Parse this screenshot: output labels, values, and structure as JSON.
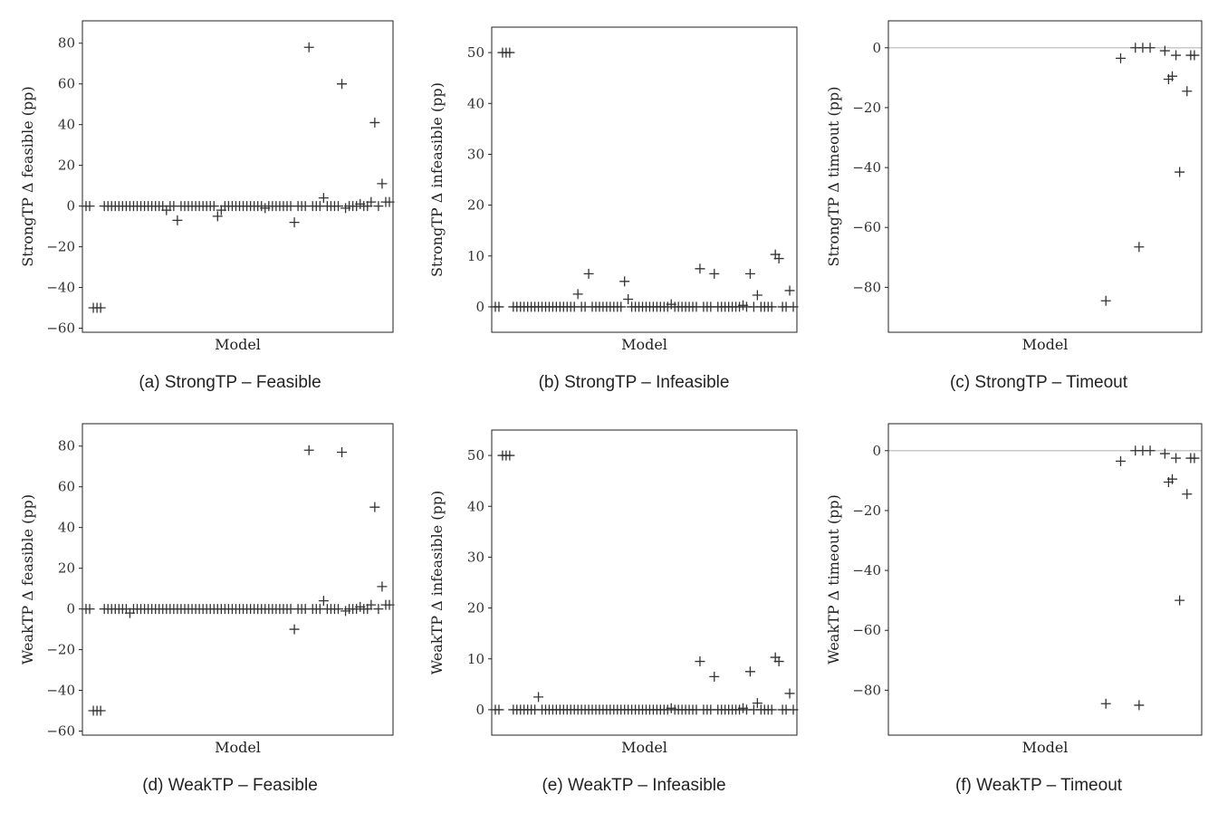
{
  "figure": {
    "panels": [
      {
        "caption": "(a) StrongTP – Feasible"
      },
      {
        "caption": "(b) StrongTP – Infeasible"
      },
      {
        "caption": "(c) StrongTP – Timeout"
      },
      {
        "caption": "(d) WeakTP – Feasible"
      },
      {
        "caption": "(e) WeakTP – Infeasible"
      },
      {
        "caption": "(f) WeakTP – Timeout"
      }
    ]
  },
  "chart_data": [
    {
      "type": "scatter",
      "title": "",
      "xlabel": "Model",
      "ylabel": "StrongTP Δ feasible (pp)",
      "ylim": [
        -62,
        91
      ],
      "yticks": [
        -60,
        -40,
        -20,
        0,
        20,
        40,
        60,
        80
      ],
      "zero_line": false,
      "series": [
        {
          "values": [
            0,
            0,
            -50,
            -50,
            -50,
            0,
            0,
            0,
            0,
            0,
            0,
            0,
            0,
            0,
            0,
            0,
            0,
            0,
            0,
            0,
            0,
            0,
            -2,
            0,
            0,
            -7,
            0,
            0,
            0,
            0,
            0,
            0,
            0,
            0,
            0,
            0,
            -5,
            -2,
            0,
            0,
            0,
            0,
            0,
            0,
            0,
            0,
            0,
            0,
            0,
            -1,
            0,
            0,
            0,
            0,
            0,
            0,
            0,
            -8,
            0,
            0,
            0,
            78,
            0,
            0,
            0,
            4,
            0,
            0,
            0,
            0,
            60,
            -1,
            0,
            0,
            0,
            1,
            0,
            0,
            2,
            41,
            0,
            11,
            2,
            2
          ]
        }
      ]
    },
    {
      "type": "scatter",
      "title": "",
      "xlabel": "Model",
      "ylabel": "StrongTP Δ infeasible (pp)",
      "ylim": [
        -5,
        55
      ],
      "yticks": [
        0,
        10,
        20,
        30,
        40,
        50
      ],
      "zero_line": false,
      "series": [
        {
          "values": [
            0,
            0,
            50,
            50,
            50,
            0,
            0,
            0,
            0,
            0,
            0,
            0,
            0,
            0,
            0,
            0,
            0,
            0,
            0,
            0,
            0,
            0,
            0,
            2.5,
            0,
            0,
            6.5,
            0,
            0,
            0,
            0,
            0,
            0,
            0,
            0,
            0,
            5,
            1.5,
            0,
            0,
            0,
            0,
            0,
            0,
            0,
            0,
            0,
            0,
            0,
            0.5,
            0,
            0,
            0,
            0,
            0,
            0,
            0,
            7.5,
            0,
            0,
            0,
            6.5,
            0,
            0,
            0,
            0,
            0,
            0,
            0,
            0.3,
            0,
            6.5,
            0,
            2.3,
            0,
            0,
            0,
            0,
            10.3,
            9.5,
            0,
            0,
            3.2,
            0
          ]
        }
      ]
    },
    {
      "type": "scatter",
      "title": "",
      "xlabel": "Model",
      "ylabel": "StrongTP Δ timeout (pp)",
      "ylim": [
        -95,
        9
      ],
      "yticks": [
        -80,
        -60,
        -40,
        -20,
        0
      ],
      "zero_line": true,
      "series": [
        {
          "x": [
            58,
            62,
            66,
            67,
            68,
            70,
            74,
            75,
            76,
            77,
            78,
            80,
            81,
            82
          ],
          "values": [
            -84.5,
            -3.5,
            0,
            -66.5,
            0,
            0,
            -1,
            -10.5,
            -9.5,
            -2.5,
            -41.5,
            -14.5,
            -2.5,
            -2.5
          ]
        }
      ]
    },
    {
      "type": "scatter",
      "title": "",
      "xlabel": "Model",
      "ylabel": "WeakTP Δ feasible (pp)",
      "ylim": [
        -62,
        91
      ],
      "yticks": [
        -60,
        -40,
        -20,
        0,
        20,
        40,
        60,
        80
      ],
      "zero_line": false,
      "series": [
        {
          "values": [
            0,
            0,
            -50,
            -50,
            -50,
            0,
            0,
            0,
            0,
            0,
            0,
            0,
            -2,
            0,
            0,
            0,
            0,
            0,
            0,
            0,
            0,
            0,
            0,
            0,
            0,
            0,
            0,
            0,
            0,
            0,
            0,
            0,
            0,
            0,
            0,
            0,
            0,
            0,
            0,
            0,
            0,
            0,
            0,
            0,
            0,
            0,
            0,
            0,
            0,
            0,
            0,
            0,
            0,
            0,
            0,
            0,
            0,
            -10,
            0,
            0,
            0,
            78,
            0,
            0,
            0,
            4,
            0,
            0,
            0,
            0,
            77,
            -1,
            0,
            0,
            0,
            1,
            0,
            0,
            2,
            50,
            0,
            11,
            2,
            2
          ]
        }
      ]
    },
    {
      "type": "scatter",
      "title": "",
      "xlabel": "Model",
      "ylabel": "WeakTP Δ infeasible (pp)",
      "ylim": [
        -5,
        55
      ],
      "yticks": [
        0,
        10,
        20,
        30,
        40,
        50
      ],
      "zero_line": false,
      "series": [
        {
          "values": [
            0,
            0,
            50,
            50,
            50,
            0,
            0,
            0,
            0,
            0,
            0,
            0,
            2.5,
            0,
            0,
            0,
            0,
            0,
            0,
            0,
            0,
            0,
            0,
            0,
            0,
            0,
            0,
            0,
            0,
            0,
            0,
            0,
            0,
            0,
            0,
            0,
            0,
            0,
            0,
            0,
            0,
            0,
            0,
            0,
            0,
            0,
            0,
            0,
            0,
            0.3,
            0,
            0,
            0,
            0,
            0,
            0,
            0,
            9.5,
            0,
            0,
            0,
            6.5,
            0,
            0,
            0,
            0,
            0,
            0,
            0,
            0.3,
            0,
            7.5,
            0,
            1.3,
            0,
            0,
            0,
            0,
            10.3,
            9.5,
            0,
            0,
            3.2,
            0
          ]
        }
      ]
    },
    {
      "type": "scatter",
      "title": "",
      "xlabel": "Model",
      "ylabel": "WeakTP Δ timeout (pp)",
      "ylim": [
        -95,
        9
      ],
      "yticks": [
        -80,
        -60,
        -40,
        -20,
        0
      ],
      "zero_line": true,
      "series": [
        {
          "x": [
            58,
            62,
            66,
            67,
            68,
            70,
            74,
            75,
            76,
            77,
            78,
            80,
            81,
            82
          ],
          "values": [
            -84.5,
            -3.5,
            0,
            -85,
            0,
            0,
            -1,
            -10.5,
            -9.5,
            -2.5,
            -50,
            -14.5,
            -2.5,
            -2.5
          ]
        }
      ]
    }
  ]
}
